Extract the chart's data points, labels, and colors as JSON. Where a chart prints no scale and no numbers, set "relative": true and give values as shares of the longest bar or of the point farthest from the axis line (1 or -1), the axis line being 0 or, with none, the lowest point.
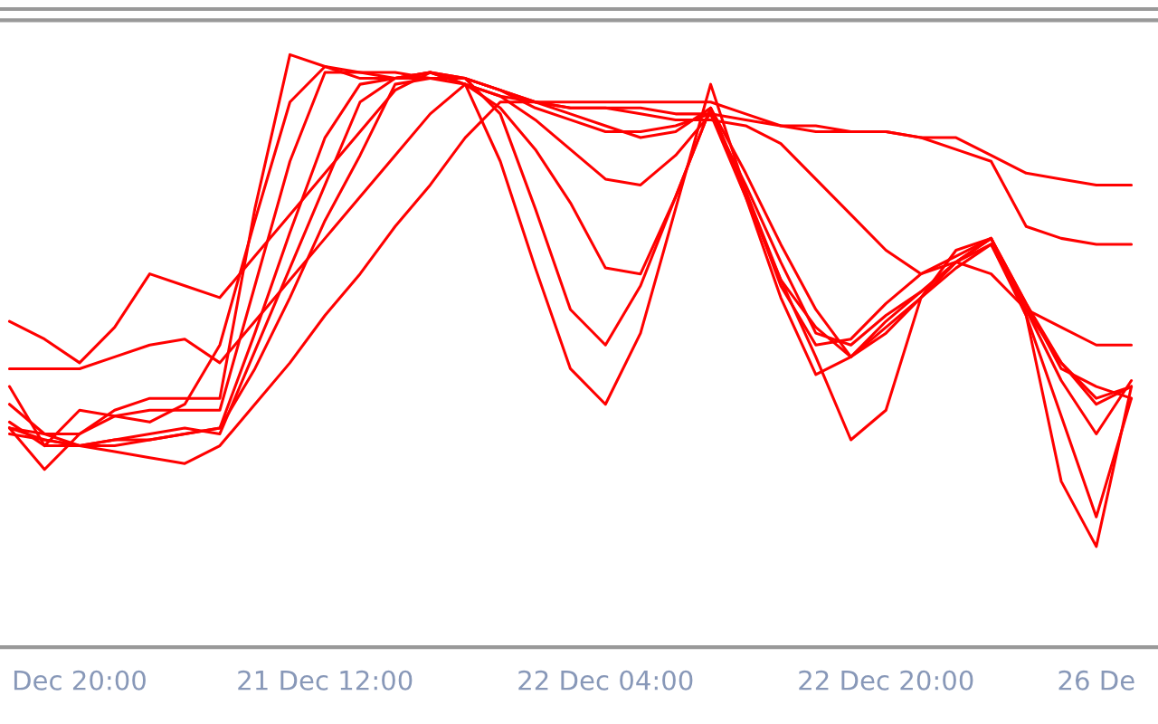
{
  "chart_data": {
    "type": "line",
    "relative": true,
    "grid": false,
    "tick_labels": "x",
    "marker": "none",
    "line_style": "solid",
    "categories": [
      null,
      null,
      "Dec 20:00",
      null,
      null,
      null,
      null,
      null,
      null,
      "21 Dec 12:00",
      null,
      null,
      null,
      null,
      null,
      null,
      null,
      "22 Dec 04:00",
      null,
      null,
      null,
      null,
      null,
      null,
      null,
      "22 Dec 20:00",
      null,
      null,
      null,
      null,
      null,
      "26 De",
      null
    ],
    "series": [
      {
        "color": "#ff0000",
        "values": [
          0.37,
          0.3,
          0.36,
          0.4,
          0.42,
          0.42,
          0.42,
          0.74,
          1.0,
          0.98,
          0.96,
          0.96,
          0.97,
          0.95,
          0.82,
          0.64,
          0.47,
          0.41,
          0.53,
          0.74,
          0.95,
          0.77,
          0.62,
          0.49,
          0.35,
          0.4,
          0.59,
          0.67,
          0.69,
          0.56,
          0.28,
          0.17,
          0.44
        ]
      },
      {
        "color": "#ff0000",
        "values": [
          0.44,
          0.34,
          0.4,
          0.39,
          0.38,
          0.41,
          0.51,
          0.72,
          0.92,
          0.98,
          0.97,
          0.96,
          0.96,
          0.96,
          0.9,
          0.74,
          0.57,
          0.51,
          0.61,
          0.76,
          0.91,
          0.76,
          0.59,
          0.46,
          0.49,
          0.53,
          0.59,
          0.64,
          0.68,
          0.56,
          0.39,
          0.22,
          0.42
        ]
      },
      {
        "color": "#ff0000",
        "values": [
          0.41,
          0.36,
          0.36,
          0.39,
          0.4,
          0.4,
          0.4,
          0.61,
          0.82,
          0.97,
          0.97,
          0.97,
          0.96,
          0.95,
          0.91,
          0.84,
          0.75,
          0.64,
          0.63,
          0.76,
          0.91,
          0.77,
          0.61,
          0.51,
          0.52,
          0.58,
          0.63,
          0.66,
          0.69,
          0.57,
          0.45,
          0.36,
          0.45
        ]
      },
      {
        "color": "#ff0000",
        "values": [
          0.38,
          0.34,
          0.34,
          0.35,
          0.35,
          0.36,
          0.37,
          0.53,
          0.7,
          0.86,
          0.95,
          0.96,
          0.97,
          0.95,
          0.93,
          0.89,
          0.84,
          0.79,
          0.78,
          0.83,
          0.9,
          0.78,
          0.65,
          0.53,
          0.51,
          0.56,
          0.6,
          0.65,
          0.69,
          0.58,
          0.48,
          0.41,
          0.44
        ]
      },
      {
        "color": "#ff0000",
        "values": [
          0.37,
          0.35,
          0.34,
          0.35,
          0.36,
          0.37,
          0.36,
          0.5,
          0.64,
          0.78,
          0.92,
          0.96,
          0.97,
          0.96,
          0.94,
          0.92,
          0.9,
          0.88,
          0.86,
          0.87,
          0.91,
          0.8,
          0.68,
          0.57,
          0.49,
          0.55,
          0.6,
          0.65,
          0.69,
          0.58,
          0.47,
          0.44,
          0.42
        ]
      },
      {
        "color": "#ff0000",
        "values": [
          0.36,
          0.35,
          0.34,
          0.34,
          0.35,
          0.36,
          0.37,
          0.47,
          0.59,
          0.72,
          0.83,
          0.95,
          0.96,
          0.96,
          0.94,
          0.91,
          0.89,
          0.87,
          0.87,
          0.88,
          0.9,
          0.76,
          0.62,
          0.54,
          0.49,
          0.54,
          0.59,
          0.65,
          0.68,
          0.57,
          0.48,
          0.42,
          0.44
        ]
      },
      {
        "color": "#ff0000",
        "values": [
          0.55,
          0.52,
          0.48,
          0.54,
          0.63,
          0.61,
          0.59,
          0.66,
          0.73,
          0.8,
          0.87,
          0.94,
          0.97,
          0.96,
          0.94,
          0.92,
          0.91,
          0.91,
          0.9,
          0.89,
          0.89,
          0.88,
          0.85,
          0.79,
          0.73,
          0.67,
          0.63,
          0.65,
          0.63,
          0.57,
          0.54,
          0.51,
          0.51
        ]
      },
      {
        "color": "#ff0000",
        "values": [
          0.37,
          0.36,
          0.34,
          0.33,
          0.32,
          0.31,
          0.34,
          0.41,
          0.48,
          0.56,
          0.63,
          0.71,
          0.78,
          0.86,
          0.92,
          0.92,
          0.91,
          0.91,
          0.91,
          0.9,
          0.9,
          0.89,
          0.88,
          0.87,
          0.87,
          0.87,
          0.86,
          0.86,
          0.83,
          0.8,
          0.79,
          0.78,
          0.78
        ]
      },
      {
        "color": "#ff0000",
        "values": [
          0.47,
          0.47,
          0.47,
          0.49,
          0.51,
          0.52,
          0.48,
          0.55,
          0.62,
          0.69,
          0.76,
          0.83,
          0.9,
          0.95,
          0.93,
          0.92,
          0.92,
          0.92,
          0.92,
          0.92,
          0.92,
          0.9,
          0.88,
          0.88,
          0.87,
          0.87,
          0.86,
          0.84,
          0.82,
          0.71,
          0.69,
          0.68,
          0.68
        ]
      }
    ]
  }
}
